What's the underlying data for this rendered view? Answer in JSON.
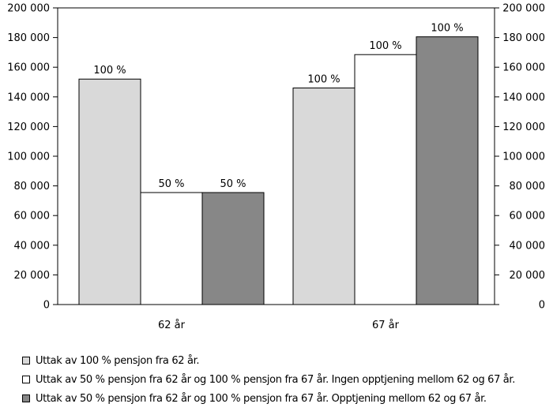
{
  "chart_data": {
    "type": "bar",
    "categories": [
      "62 år",
      "67 år"
    ],
    "series": [
      {
        "name": "Uttak av 100 % pensjon fra 62 år.",
        "values": [
          152000,
          146000
        ],
        "labels": [
          "100 %",
          "100 %"
        ],
        "color": "#d9d9d9"
      },
      {
        "name": "Uttak av 50 % pensjon fra 62 år og 100 % pensjon fra 67 år. Ingen opptjening mellom 62 og 67 år.",
        "values": [
          75500,
          168500
        ],
        "labels": [
          "50 %",
          "100 %"
        ],
        "color": "#ffffff"
      },
      {
        "name": "Uttak av 50 % pensjon fra 62 år og 100 % pensjon fra 67 år. Opptjening mellom 62 og 67 år.",
        "values": [
          75500,
          180500
        ],
        "labels": [
          "50 %",
          "100 %"
        ],
        "color": "#878787"
      }
    ],
    "ylim": [
      0,
      200000
    ],
    "yticks": [
      0,
      20000,
      40000,
      60000,
      80000,
      100000,
      120000,
      140000,
      160000,
      180000,
      200000
    ],
    "ytick_labels": [
      "0",
      "20 000",
      "40 000",
      "60 000",
      "80 000",
      "100 000",
      "120 000",
      "140 000",
      "160 000",
      "180 000",
      "200 000"
    ],
    "title": "",
    "xlabel": "",
    "ylabel": "",
    "grid": false,
    "right_axis": true,
    "legend_position": "bottom"
  }
}
